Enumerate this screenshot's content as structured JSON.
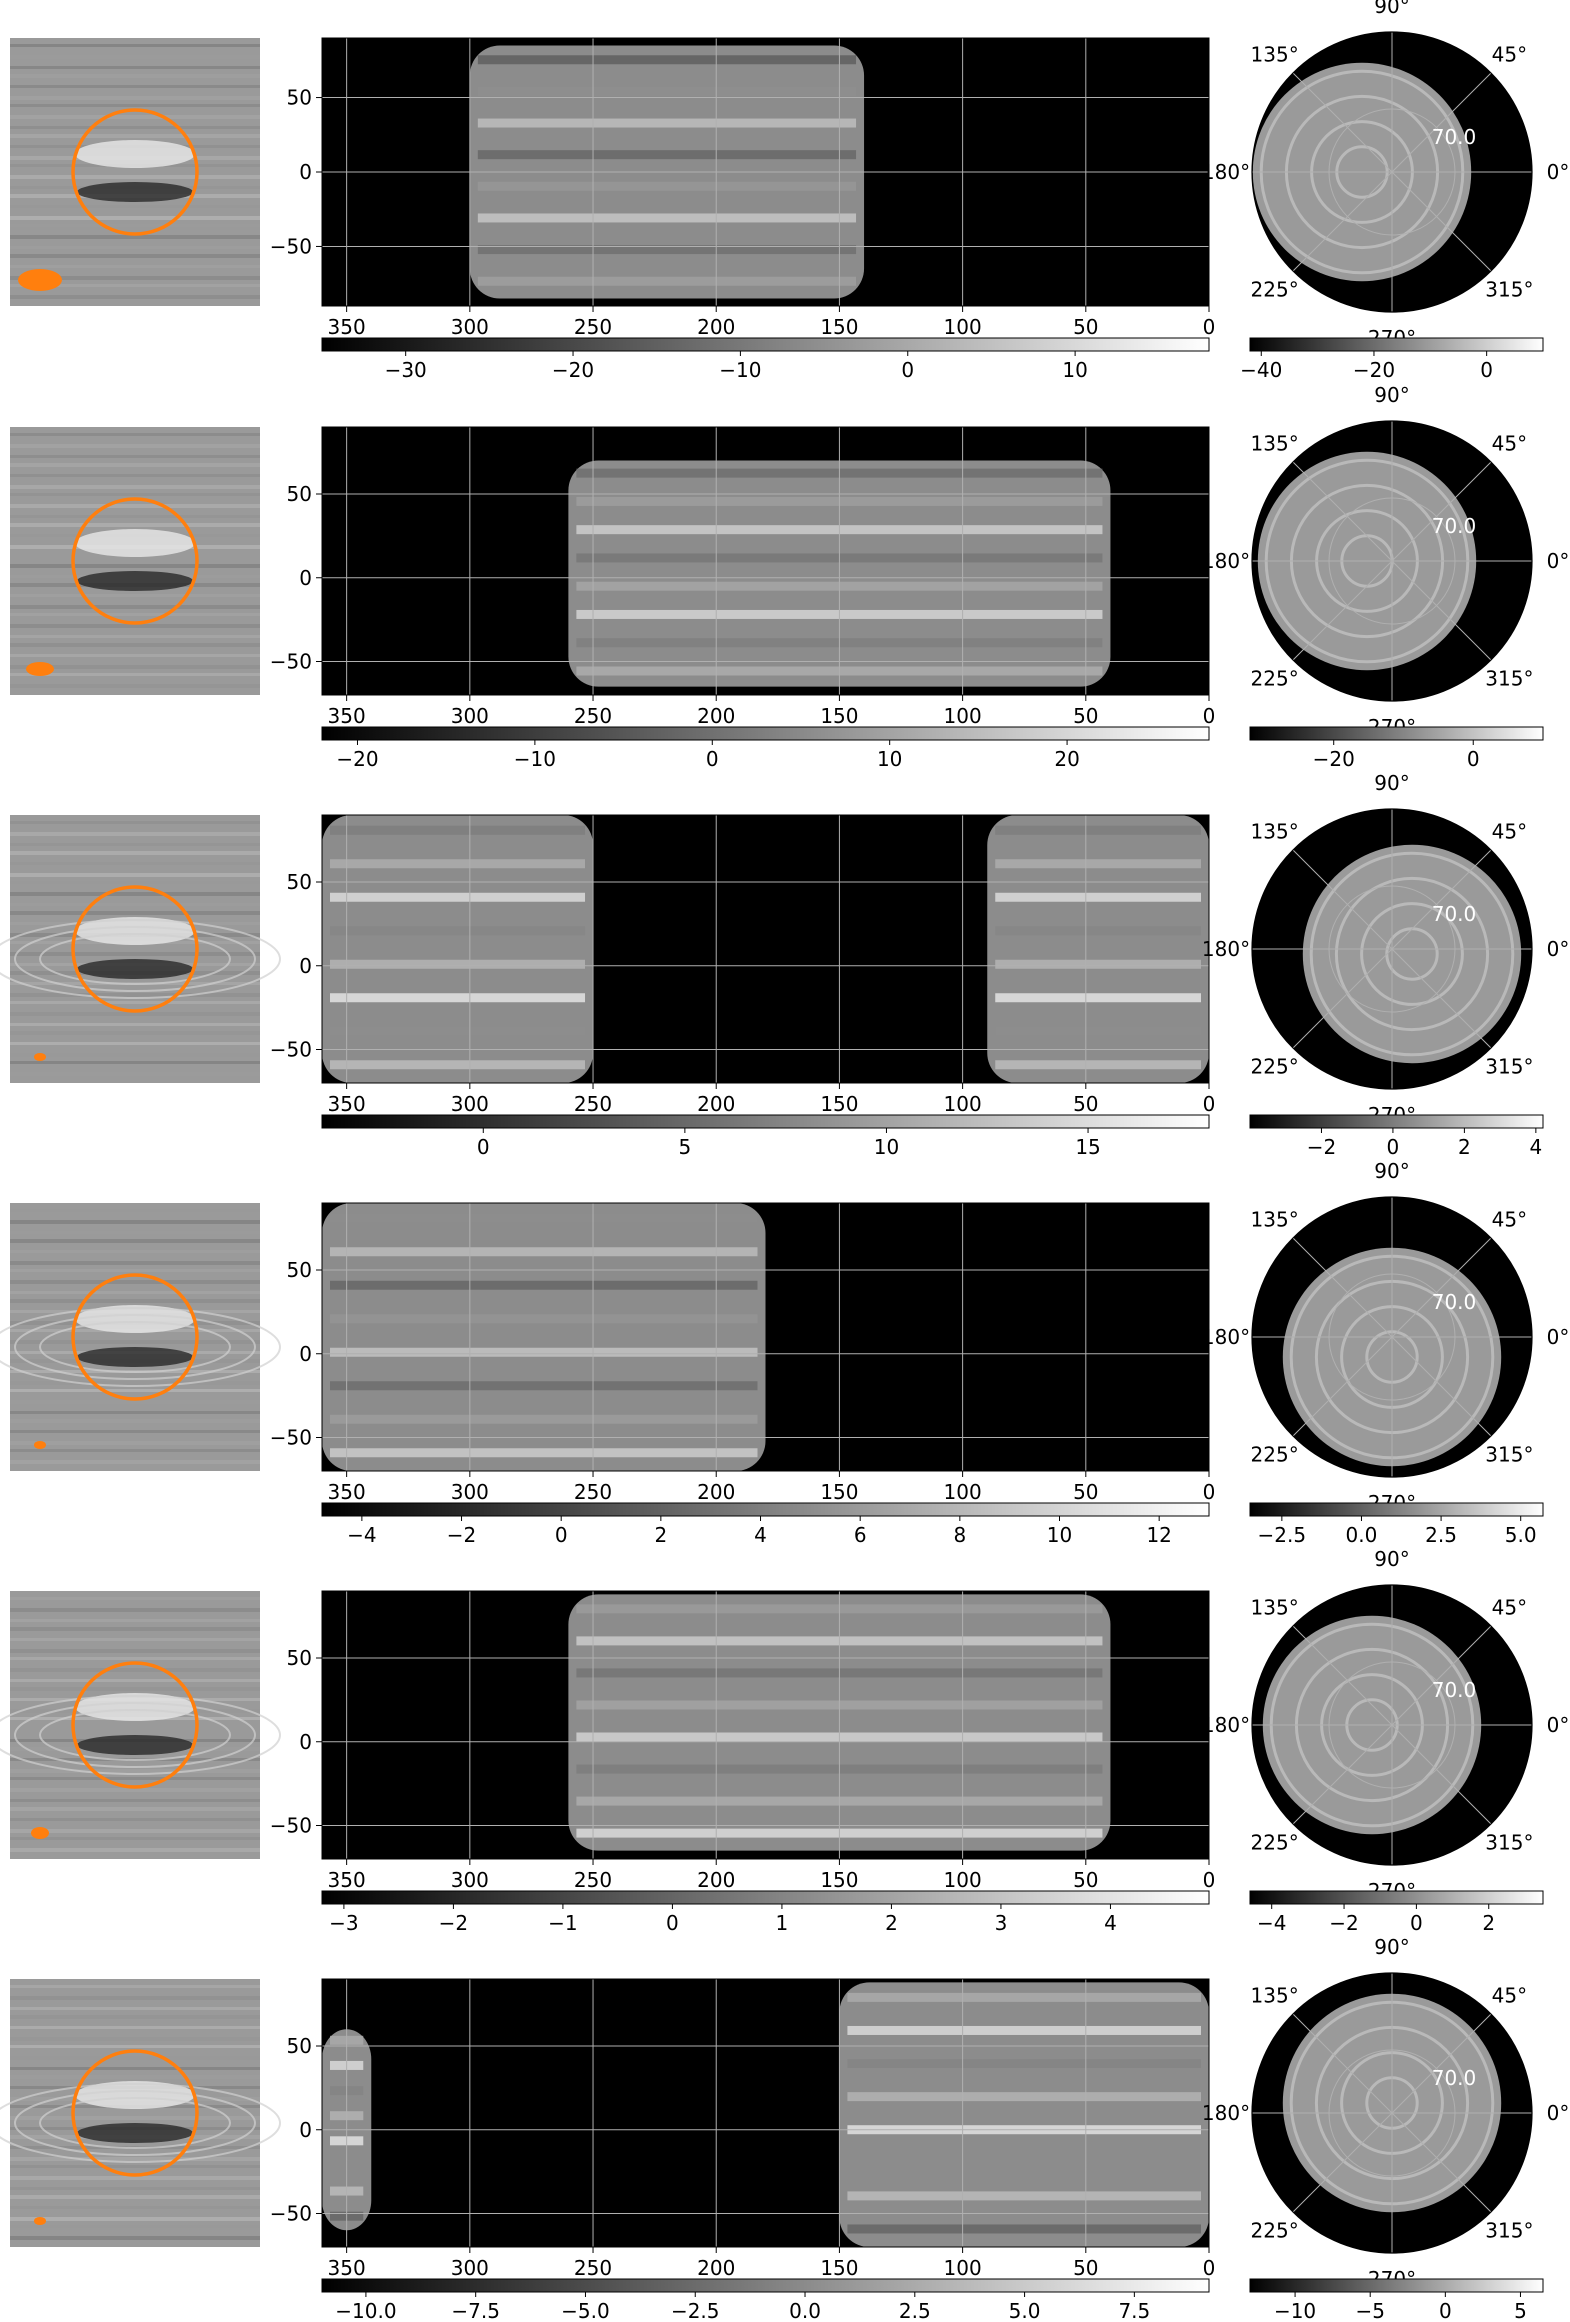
{
  "chart_data": [
    {
      "row": 1,
      "type": "heatmap",
      "sky_image": {
        "ring_color": "#ff7f0e",
        "beam_color": "#ff7f0e"
      },
      "map": {
        "xlim": [
          360,
          0
        ],
        "ylim": [
          -90,
          90
        ],
        "xticks": [
          350,
          300,
          250,
          200,
          150,
          100,
          50,
          0
        ],
        "yticks": [
          50,
          0,
          -50
        ],
        "coverage": "lon 140-300, lat -85 to 85"
      },
      "map_colorbar": {
        "range": [
          -35,
          18
        ],
        "ticks": [
          -30,
          -20,
          -10,
          0,
          10
        ]
      },
      "polar": {
        "angle_labels": [
          "90°",
          "45°",
          "0°",
          "315°",
          "270°",
          "225°",
          "180°",
          "135°"
        ],
        "radial_label": "70.0"
      },
      "polar_colorbar": {
        "range": [
          -42,
          10
        ],
        "ticks": [
          -40,
          -20,
          0
        ]
      }
    },
    {
      "row": 2,
      "type": "heatmap",
      "sky_image": {
        "ring_color": "#ff7f0e",
        "beam_color": "#ff7f0e"
      },
      "map": {
        "xlim": [
          360,
          0
        ],
        "ylim": [
          -70,
          90
        ],
        "xticks": [
          350,
          300,
          250,
          200,
          150,
          100,
          50,
          0
        ],
        "yticks": [
          50,
          0,
          -50
        ],
        "coverage": "lon 40-260 centered 150"
      },
      "map_colorbar": {
        "range": [
          -22,
          28
        ],
        "ticks": [
          -20,
          -10,
          0,
          10,
          20
        ]
      },
      "polar": {
        "angle_labels": [
          "90°",
          "45°",
          "0°",
          "315°",
          "270°",
          "225°",
          "180°",
          "135°"
        ],
        "radial_label": "70.0"
      },
      "polar_colorbar": {
        "range": [
          -32,
          10
        ],
        "ticks": [
          -20,
          0
        ]
      }
    },
    {
      "row": 3,
      "type": "heatmap",
      "sky_image": {
        "ring_color": "#ff7f0e",
        "beam_color": "#ff7f0e"
      },
      "map": {
        "xlim": [
          360,
          0
        ],
        "ylim": [
          -70,
          90
        ],
        "xticks": [
          350,
          300,
          250,
          200,
          150,
          100,
          50,
          0
        ],
        "yticks": [
          50,
          0,
          -50
        ],
        "coverage": "lon 0-90 and 250-360"
      },
      "map_colorbar": {
        "range": [
          -4,
          18
        ],
        "ticks": [
          0,
          5,
          10,
          15
        ]
      },
      "polar": {
        "angle_labels": [
          "90°",
          "45°",
          "0°",
          "315°",
          "270°",
          "225°",
          "180°",
          "135°"
        ],
        "radial_label": "70.0"
      },
      "polar_colorbar": {
        "range": [
          -4,
          4.2
        ],
        "ticks": [
          -2,
          0,
          2,
          4
        ]
      }
    },
    {
      "row": 4,
      "type": "heatmap",
      "sky_image": {
        "ring_color": "#ff7f0e",
        "beam_color": "#ff7f0e"
      },
      "map": {
        "xlim": [
          360,
          0
        ],
        "ylim": [
          -70,
          90
        ],
        "xticks": [
          350,
          300,
          250,
          200,
          150,
          100,
          50,
          0
        ],
        "yticks": [
          50,
          0,
          -50
        ],
        "coverage": "lon 180-360 centered 280"
      },
      "map_colorbar": {
        "range": [
          -4.8,
          13
        ],
        "ticks": [
          -4,
          -2,
          0,
          2,
          4,
          6,
          8,
          10,
          12
        ]
      },
      "polar": {
        "angle_labels": [
          "90°",
          "45°",
          "0°",
          "315°",
          "270°",
          "225°",
          "180°",
          "135°"
        ],
        "radial_label": "70.0"
      },
      "polar_colorbar": {
        "range": [
          -3.5,
          5.7
        ],
        "ticks": [
          -2.5,
          0.0,
          2.5,
          5.0
        ]
      }
    },
    {
      "row": 5,
      "type": "heatmap",
      "sky_image": {
        "ring_color": "#ff7f0e",
        "beam_color": "#ff7f0e"
      },
      "map": {
        "xlim": [
          360,
          0
        ],
        "ylim": [
          -70,
          90
        ],
        "xticks": [
          350,
          300,
          250,
          200,
          150,
          100,
          50,
          0
        ],
        "yticks": [
          50,
          0,
          -50
        ],
        "coverage": "lon 40-260 centered 150"
      },
      "map_colorbar": {
        "range": [
          -3.2,
          4.9
        ],
        "ticks": [
          -3,
          -2,
          -1,
          0,
          1,
          2,
          3,
          4
        ]
      },
      "polar": {
        "angle_labels": [
          "90°",
          "45°",
          "0°",
          "315°",
          "270°",
          "225°",
          "180°",
          "135°"
        ],
        "radial_label": "70.0"
      },
      "polar_colorbar": {
        "range": [
          -4.6,
          3.5
        ],
        "ticks": [
          -4,
          -2,
          0,
          2
        ]
      }
    },
    {
      "row": 6,
      "type": "heatmap",
      "sky_image": {
        "ring_color": "#ff7f0e",
        "beam_color": "#ff7f0e"
      },
      "map": {
        "xlim": [
          360,
          0
        ],
        "ylim": [
          -70,
          90
        ],
        "xticks": [
          350,
          300,
          250,
          200,
          150,
          100,
          50,
          0
        ],
        "yticks": [
          50,
          0,
          -50
        ],
        "coverage": "lon 0-150 and 340-360"
      },
      "map_colorbar": {
        "range": [
          -11,
          9.2
        ],
        "ticks": [
          -10.0,
          -7.5,
          -5.0,
          -2.5,
          0.0,
          2.5,
          5.0,
          7.5
        ]
      },
      "polar": {
        "angle_labels": [
          "90°",
          "45°",
          "0°",
          "315°",
          "270°",
          "225°",
          "180°",
          "135°"
        ],
        "radial_label": "70.0"
      },
      "polar_colorbar": {
        "range": [
          -13,
          6.5
        ],
        "ticks": [
          -10,
          -5,
          0,
          5
        ]
      }
    }
  ]
}
